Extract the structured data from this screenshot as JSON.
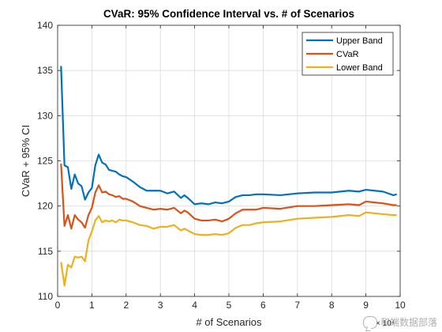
{
  "chart_data": {
    "type": "line",
    "title": "CVaR: 95% Confidence Interval vs. # of Scenarios",
    "xlabel": "# of Scenarios",
    "ylabel": "CVaR + 95% CI",
    "x_exponent_label": "× 10⁴",
    "xlim": [
      0,
      10
    ],
    "ylim": [
      110,
      140
    ],
    "x_ticks": [
      "0",
      "1",
      "2",
      "3",
      "4",
      "5",
      "6",
      "7",
      "8",
      "9",
      "10"
    ],
    "y_ticks": [
      "110",
      "115",
      "120",
      "125",
      "130",
      "135",
      "140"
    ],
    "grid": true,
    "legend_position": "top-right",
    "x": [
      0.1,
      0.2,
      0.3,
      0.4,
      0.5,
      0.6,
      0.7,
      0.8,
      0.9,
      1.0,
      1.1,
      1.2,
      1.3,
      1.4,
      1.5,
      1.6,
      1.7,
      1.8,
      1.9,
      2.0,
      2.2,
      2.4,
      2.6,
      2.8,
      3.0,
      3.2,
      3.4,
      3.6,
      3.7,
      3.8,
      4.0,
      4.2,
      4.4,
      4.6,
      4.8,
      5.0,
      5.2,
      5.4,
      5.6,
      5.8,
      6.0,
      6.5,
      7.0,
      7.5,
      8.0,
      8.5,
      8.8,
      9.0,
      9.5,
      9.8,
      9.9
    ],
    "series": [
      {
        "name": "Upper Band",
        "color": "#0072BD",
        "values": [
          135.5,
          124.5,
          124.3,
          121.9,
          123.5,
          122.5,
          122.2,
          120.7,
          121.5,
          122.0,
          124.5,
          125.7,
          124.8,
          124.6,
          124.0,
          123.9,
          123.8,
          123.5,
          123.3,
          123.2,
          122.7,
          122.1,
          121.7,
          121.7,
          121.7,
          121.4,
          121.6,
          120.9,
          121.2,
          120.9,
          120.2,
          120.3,
          120.2,
          120.4,
          120.3,
          120.5,
          121.0,
          121.2,
          121.2,
          121.3,
          121.3,
          121.2,
          121.4,
          121.5,
          121.5,
          121.7,
          121.6,
          121.8,
          121.6,
          121.2,
          121.3
        ]
      },
      {
        "name": "CVaR",
        "color": "#D95319",
        "values": [
          124.7,
          117.8,
          119.0,
          117.5,
          119.0,
          118.5,
          118.2,
          117.6,
          119.0,
          119.8,
          121.5,
          122.3,
          121.5,
          121.6,
          121.3,
          121.2,
          121.0,
          121.1,
          120.8,
          120.8,
          120.5,
          120.0,
          119.8,
          119.6,
          119.7,
          119.6,
          119.8,
          119.2,
          119.5,
          119.3,
          118.6,
          118.4,
          118.4,
          118.5,
          118.3,
          118.6,
          119.2,
          119.6,
          119.6,
          119.6,
          119.8,
          119.7,
          120.0,
          120.0,
          120.1,
          120.2,
          120.1,
          120.5,
          120.3,
          120.1,
          120.1
        ]
      },
      {
        "name": "Lower Band",
        "color": "#EDB120",
        "values": [
          113.8,
          111.2,
          113.5,
          113.2,
          114.4,
          114.3,
          114.4,
          113.9,
          116.2,
          117.2,
          118.4,
          118.9,
          118.2,
          118.4,
          118.3,
          118.4,
          118.2,
          118.5,
          118.4,
          118.4,
          118.2,
          117.9,
          117.8,
          117.5,
          117.7,
          117.7,
          117.9,
          117.3,
          117.5,
          117.3,
          116.9,
          116.8,
          116.8,
          116.9,
          116.8,
          117.0,
          117.6,
          117.9,
          117.9,
          118.1,
          118.2,
          118.3,
          118.6,
          118.7,
          118.8,
          119.0,
          118.9,
          119.3,
          119.1,
          119.0,
          119.0
        ]
      }
    ]
  },
  "watermark": "和端数据部落"
}
